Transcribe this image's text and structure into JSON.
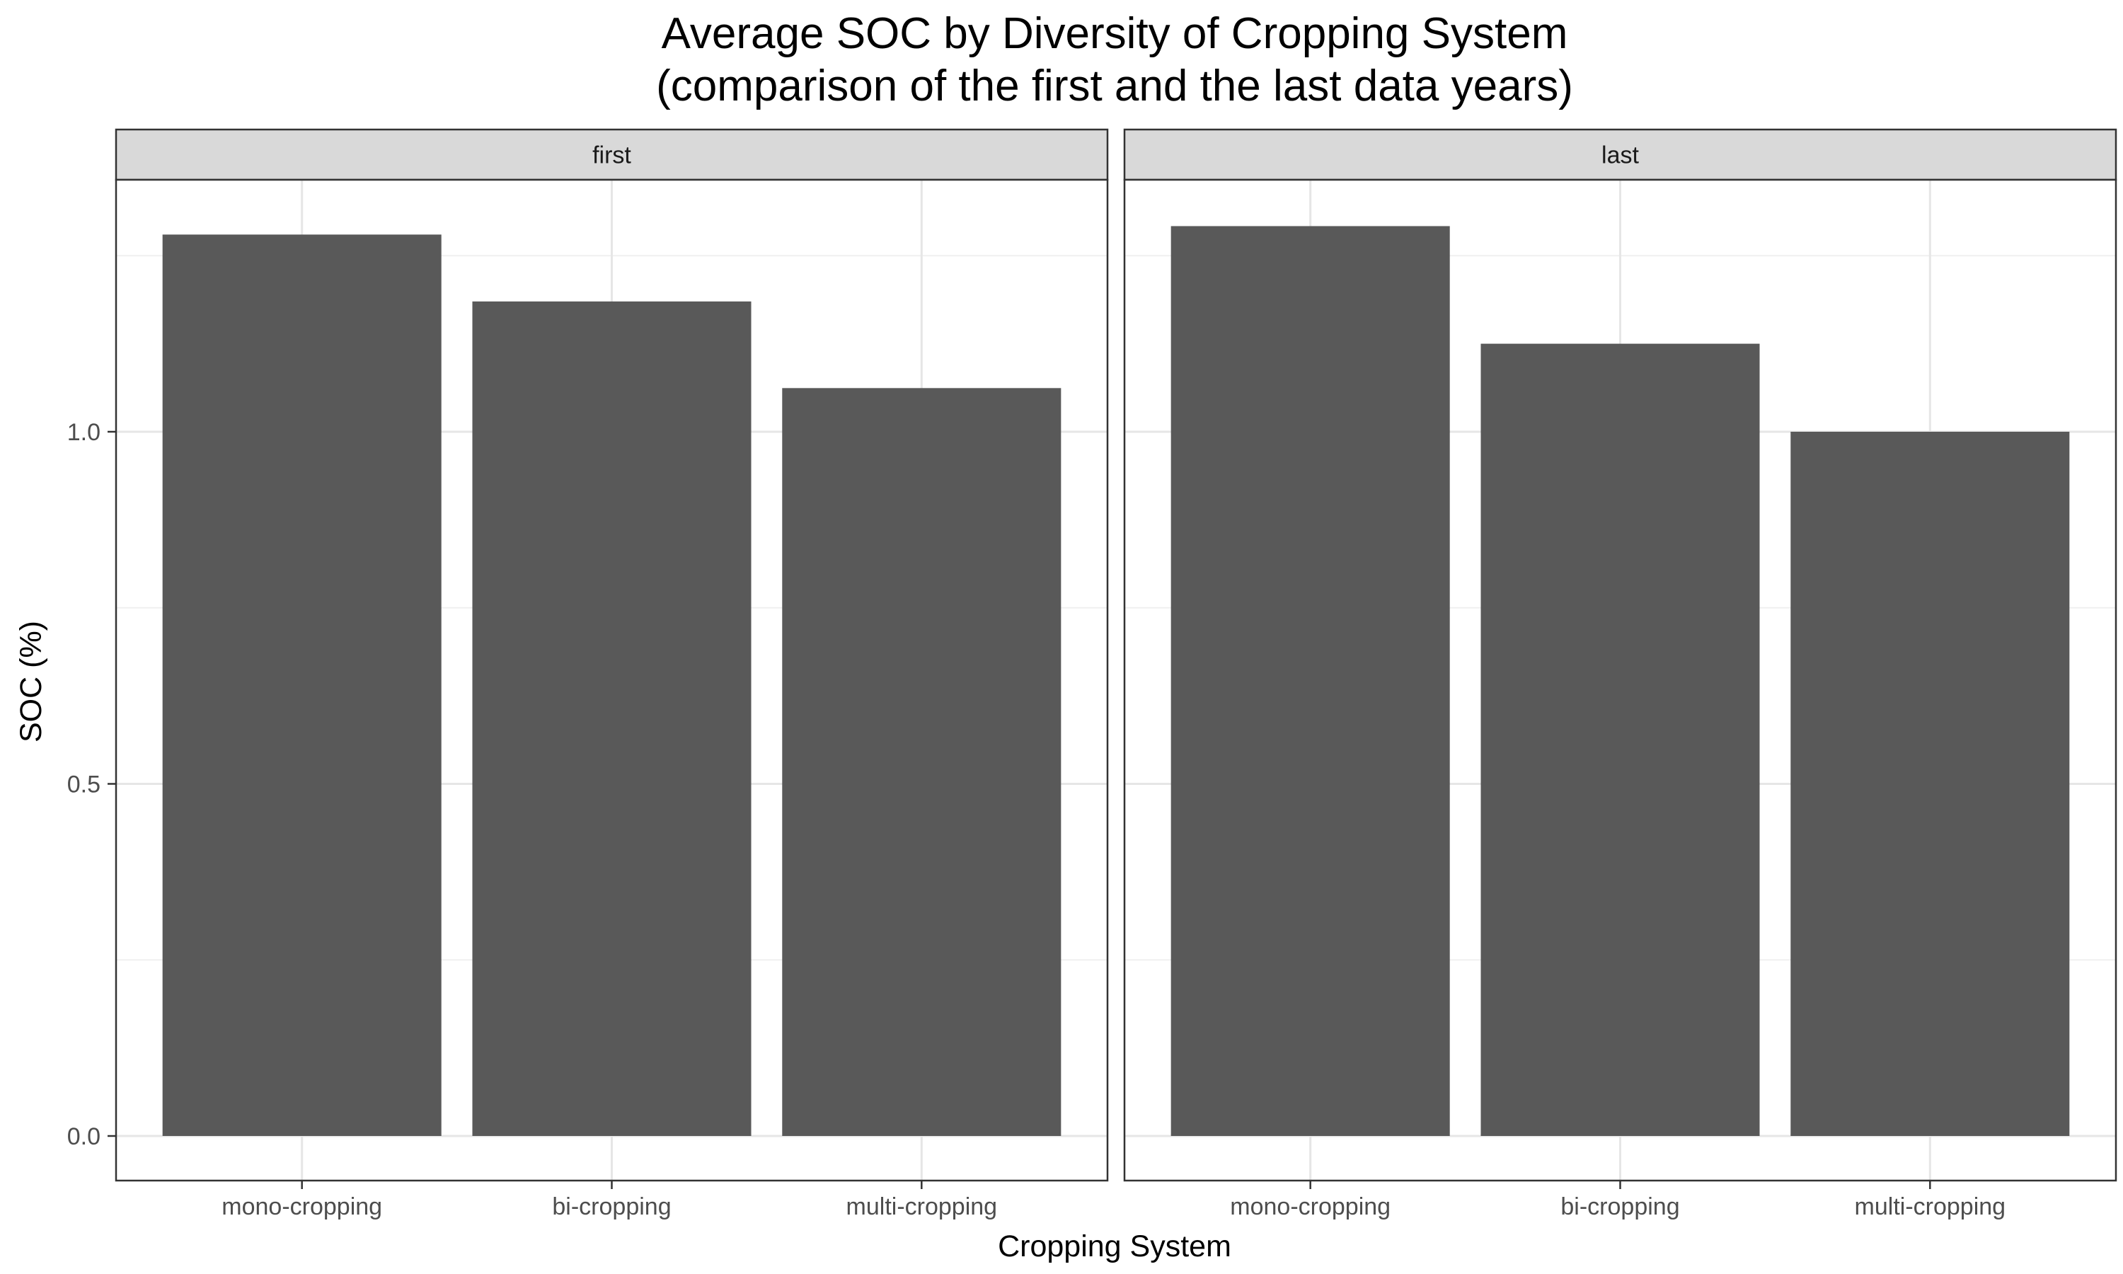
{
  "chart_data": {
    "type": "bar",
    "title": "Average SOC by Diversity of Cropping System",
    "subtitle": "(comparison of the first and the last data years)",
    "xlabel": "Cropping System",
    "ylabel": "SOC (%)",
    "categories": [
      "mono-cropping",
      "bi-cropping",
      "multi-cropping"
    ],
    "ylim": [
      0,
      1.37
    ],
    "yticks": [
      0.0,
      0.5,
      1.0
    ],
    "ytick_labels": [
      "0.0",
      "0.5",
      "1.0"
    ],
    "grid": true,
    "bar_color": "#595959",
    "panels": [
      {
        "name": "first",
        "values": [
          1.28,
          1.185,
          1.062
        ]
      },
      {
        "name": "last",
        "values": [
          1.292,
          1.125,
          1.0
        ]
      }
    ]
  }
}
